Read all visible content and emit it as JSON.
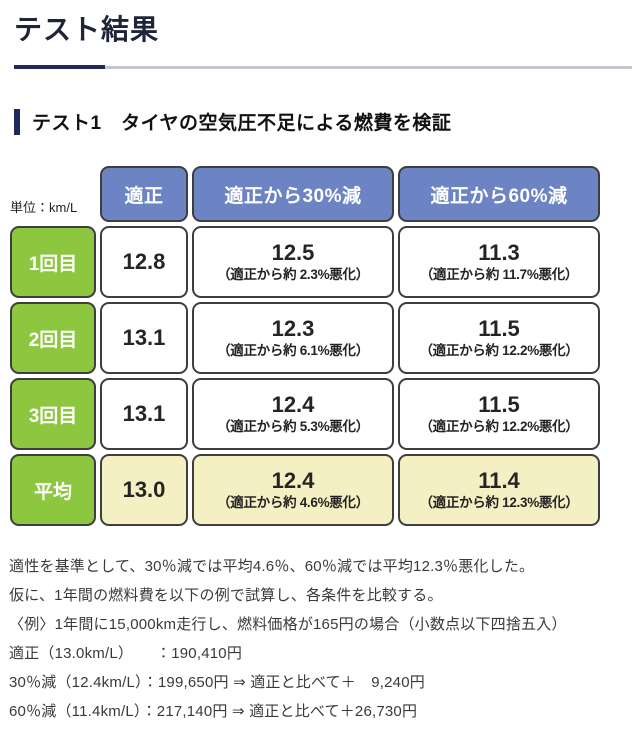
{
  "page": {
    "title": "テスト結果",
    "section_heading": "テスト1　タイヤの空気圧不足による燃費を検証"
  },
  "colors": {
    "accent_navy": "#1f2a5b",
    "rule_gray": "#c4c6ce",
    "header_blue": "#6c84c4",
    "row_green": "#8dc63f",
    "highlight_yellow": "#f5f0c3",
    "cell_border": "#3e3e3e"
  },
  "table": {
    "unit_label": "単位：km/L",
    "columns": [
      "適正",
      "適正から30%減",
      "適正から60%減"
    ],
    "rows": [
      {
        "label": "1回目",
        "proper": "12.8",
        "r30_value": "12.5",
        "r30_note": "（適正から約 2.3%悪化）",
        "r60_value": "11.3",
        "r60_note": "（適正から約 11.7%悪化）"
      },
      {
        "label": "2回目",
        "proper": "13.1",
        "r30_value": "12.3",
        "r30_note": "（適正から約 6.1%悪化）",
        "r60_value": "11.5",
        "r60_note": "（適正から約 12.2%悪化）"
      },
      {
        "label": "3回目",
        "proper": "13.1",
        "r30_value": "12.4",
        "r30_note": "（適正から約 5.3%悪化）",
        "r60_value": "11.5",
        "r60_note": "（適正から約 12.2%悪化）"
      },
      {
        "label": "平均",
        "proper": "13.0",
        "r30_value": "12.4",
        "r30_note": "（適正から約 4.6%悪化）",
        "r60_value": "11.4",
        "r60_note": "（適正から約 12.3%悪化）"
      }
    ]
  },
  "notes": {
    "lines": [
      "適性を基準として、30％減では平均4.6％、60％減では平均12.3％悪化した。",
      "仮に、1年間の燃料費を以下の例で試算し、各条件を比較する。",
      "〈例〉1年間に15,000km走行し、燃料価格が165円の場合（小数点以下四捨五入）",
      "適正（13.0km/L）　　：190,410円",
      "30％減（12.4km/L）：199,650円 ⇒ 適正と比べて＋　9,240円",
      "60％減（11.4km/L）：217,140円 ⇒ 適正と比べて＋26,730円"
    ]
  }
}
